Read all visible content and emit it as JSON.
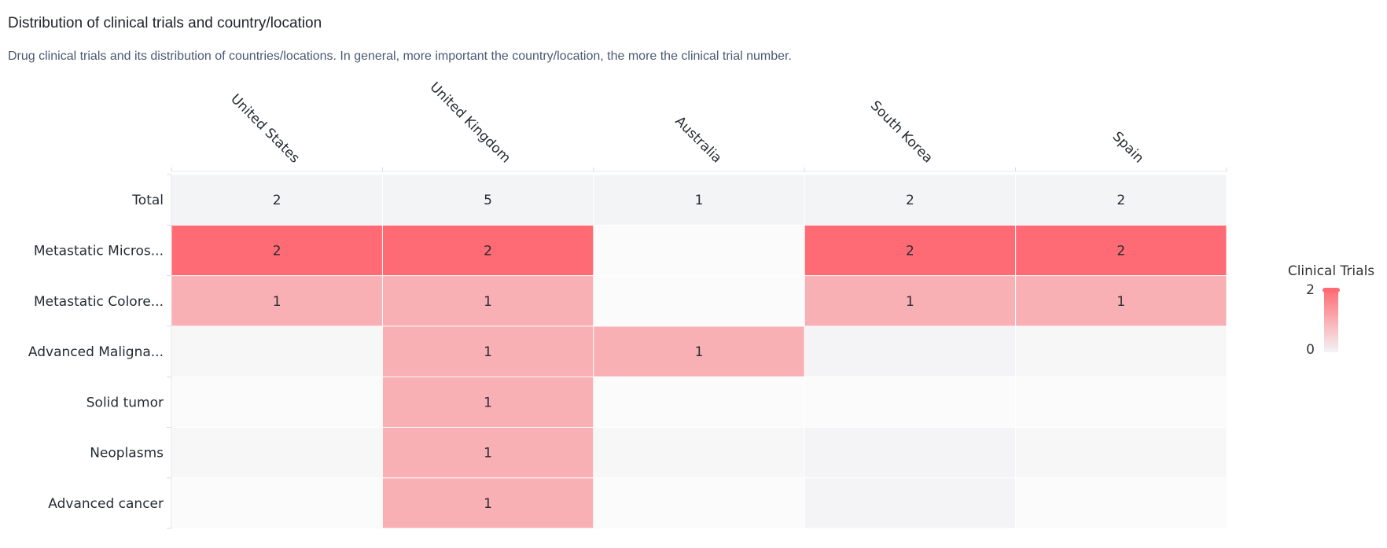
{
  "header": {
    "title": "Distribution of clinical trials and country/location",
    "subtitle": "Drug clinical trials and its distribution of countries/locations. In general, more important the country/location, the more the clinical trial number."
  },
  "chart_data": {
    "type": "heatmap",
    "columns": [
      "United States",
      "United Kingdom",
      "Australia",
      "South Korea",
      "Spain"
    ],
    "rows": [
      "Total",
      "Metastatic Micros...",
      "Metastatic Colore...",
      "Advanced Maligna...",
      "Solid tumor",
      "Neoplasms",
      "Advanced cancer"
    ],
    "values": [
      [
        2,
        5,
        1,
        2,
        2
      ],
      [
        2,
        2,
        null,
        2,
        2
      ],
      [
        1,
        1,
        null,
        1,
        1
      ],
      [
        null,
        1,
        1,
        null,
        null
      ],
      [
        null,
        1,
        null,
        null,
        null
      ],
      [
        null,
        1,
        null,
        null,
        null
      ],
      [
        null,
        1,
        null,
        null,
        null
      ]
    ],
    "legend": {
      "title": "Clinical Trials",
      "max": 2,
      "min": 0,
      "max_label": "2",
      "min_label": "0"
    },
    "colors": {
      "high": "#ff6b74",
      "low": "#f8b0b4",
      "total_row": "#f3f4f6",
      "empty_a": "#f7f7f8",
      "empty_b": "#fbfbfb",
      "empty_c": "#f4f4f6",
      "legend_top": "#ff6b74",
      "legend_bottom": "#f3f4f6"
    }
  }
}
